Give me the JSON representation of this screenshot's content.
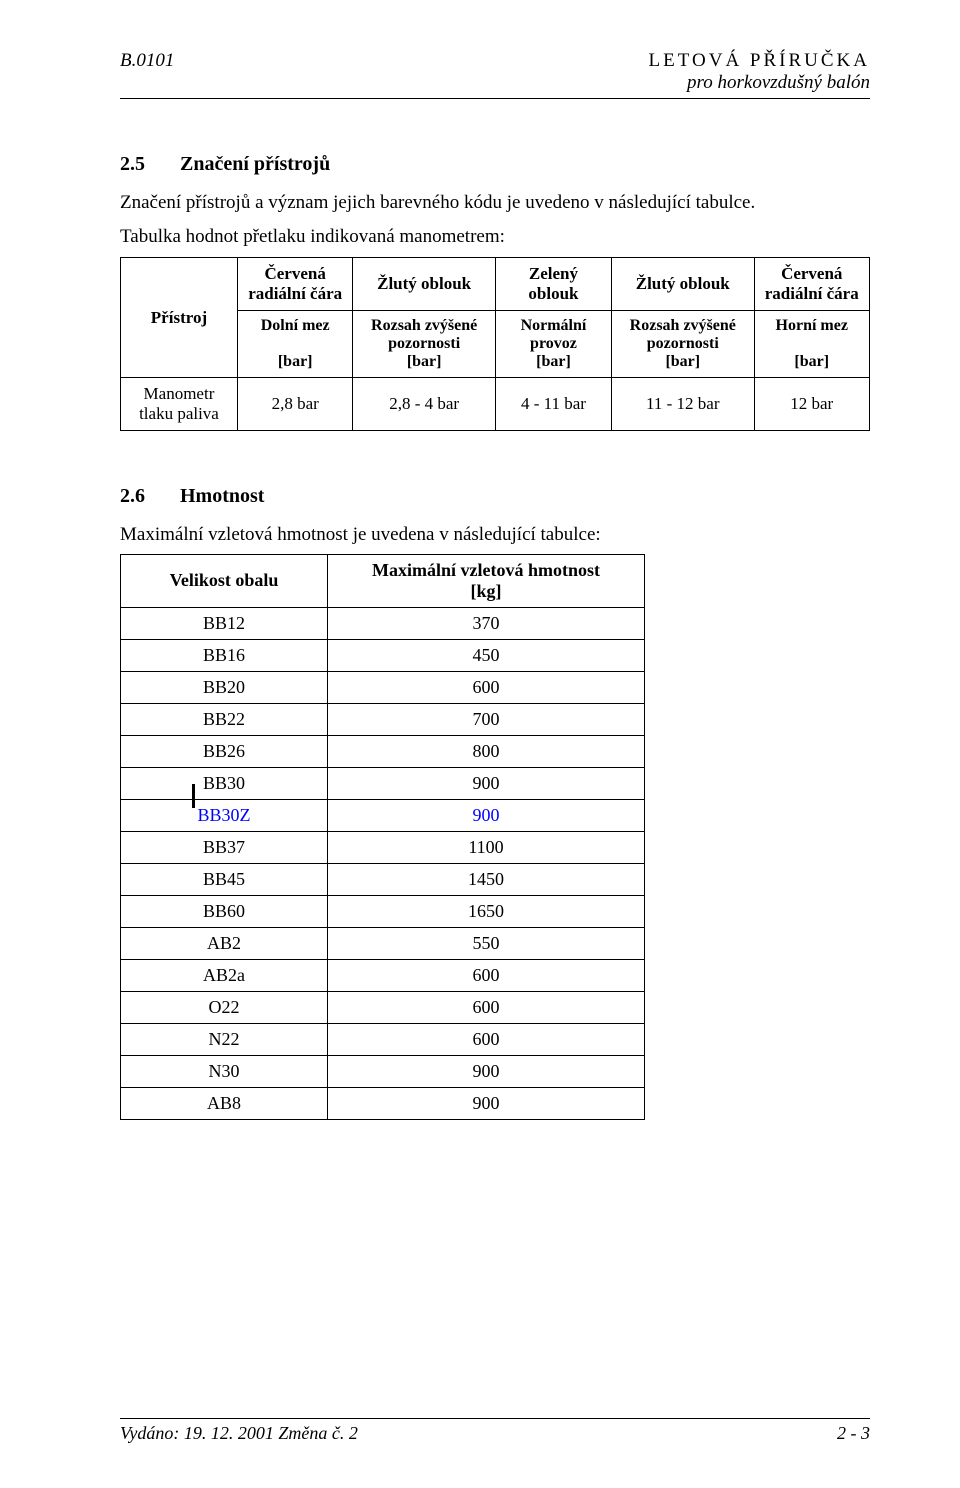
{
  "header": {
    "left": "B.0101",
    "right1": "LETOVÁ PŘÍRUČKA",
    "right2": "pro horkovzdušný balón"
  },
  "section25": {
    "num": "2.5",
    "title": "Značení přístrojů",
    "intro": "Značení přístrojů a význam jejich barevného kódu je uvedeno v následující tabulce.",
    "tableIntro": "Tabulka hodnot přetlaku indikovaná manometrem:"
  },
  "table1": {
    "header_row1": [
      "Přístroj",
      "Červená radiální čára",
      "Žlutý oblouk",
      "Zelený oblouk",
      "Žlutý oblouk",
      "Červená radiální čára"
    ],
    "header_row2_labels": [
      "Dolní mez",
      "Rozsah zvýšené pozornosti",
      "Normální provoz",
      "Rozsah zvýšené pozornosti",
      "Horní mez"
    ],
    "header_row2_units": [
      "[bar]",
      "[bar]",
      "[bar]",
      "[bar]",
      "[bar]"
    ],
    "data_row_label": "Manometr tlaku paliva",
    "data_row_values": [
      "2,8 bar",
      "2,8 - 4 bar",
      "4 - 11 bar",
      "11 - 12 bar",
      "12 bar"
    ]
  },
  "section26": {
    "num": "2.6",
    "title": "Hmotnost",
    "intro": "Maximální vzletová hmotnost je uvedena v následující tabulce:"
  },
  "table2": {
    "columns": [
      "Velikost obalu",
      "Maximální vzletová hmotnost [kg]"
    ],
    "col1_line1": "Velikost obalu",
    "col2_line1": "Maximální vzletová hmotnost",
    "col2_line2": "[kg]",
    "rows": [
      {
        "label": "BB12",
        "value": "370",
        "blue": false
      },
      {
        "label": "BB16",
        "value": "450",
        "blue": false
      },
      {
        "label": "BB20",
        "value": "600",
        "blue": false
      },
      {
        "label": "BB22",
        "value": "700",
        "blue": false
      },
      {
        "label": "BB26",
        "value": "800",
        "blue": false
      },
      {
        "label": "BB30",
        "value": "900",
        "blue": false
      },
      {
        "label": "BB30Z",
        "value": "900",
        "blue": true
      },
      {
        "label": "BB37",
        "value": "1100",
        "blue": false
      },
      {
        "label": "BB45",
        "value": "1450",
        "blue": false
      },
      {
        "label": "BB60",
        "value": "1650",
        "blue": false
      },
      {
        "label": "AB2",
        "value": "550",
        "blue": false
      },
      {
        "label": "AB2a",
        "value": "600",
        "blue": false
      },
      {
        "label": "O22",
        "value": "600",
        "blue": false
      },
      {
        "label": "N22",
        "value": "600",
        "blue": false
      },
      {
        "label": "N30",
        "value": "900",
        "blue": false
      },
      {
        "label": "AB8",
        "value": "900",
        "blue": false
      }
    ]
  },
  "footer": {
    "left": "Vydáno:  19. 12. 2001     Změna č. 2",
    "right": "2 - 3"
  }
}
